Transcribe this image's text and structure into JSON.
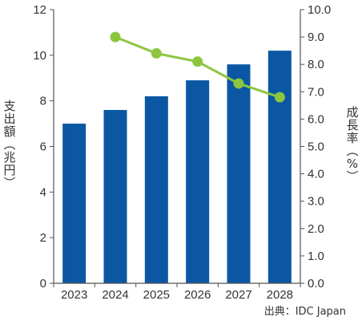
{
  "chart_data": {
    "type": "bar",
    "categories": [
      "2023",
      "2024",
      "2025",
      "2026",
      "2027",
      "2028"
    ],
    "series": [
      {
        "type": "bar",
        "axis": "left",
        "values": [
          7.0,
          7.6,
          8.2,
          8.9,
          9.6,
          10.2
        ]
      },
      {
        "type": "line",
        "axis": "right",
        "values": [
          null,
          9.0,
          8.4,
          8.1,
          7.3,
          6.8
        ]
      }
    ],
    "ylabel_left": "支出額（兆円）",
    "ylabel_right": "成長率（%）",
    "ylim_left": [
      0,
      12
    ],
    "ylim_right": [
      0,
      10
    ],
    "yticks_left": [
      "0",
      "2",
      "4",
      "6",
      "8",
      "10",
      "12"
    ],
    "yticks_right": [
      "0.0",
      "1.0",
      "2.0",
      "3.0",
      "4.0",
      "5.0",
      "6.0",
      "7.0",
      "8.0",
      "9.0",
      "10.0"
    ],
    "grid": false,
    "colors": {
      "bar": "#0b57a4",
      "line": "#8cc63f",
      "axis": "#555555"
    }
  },
  "source_note": "出典：IDC Japan"
}
